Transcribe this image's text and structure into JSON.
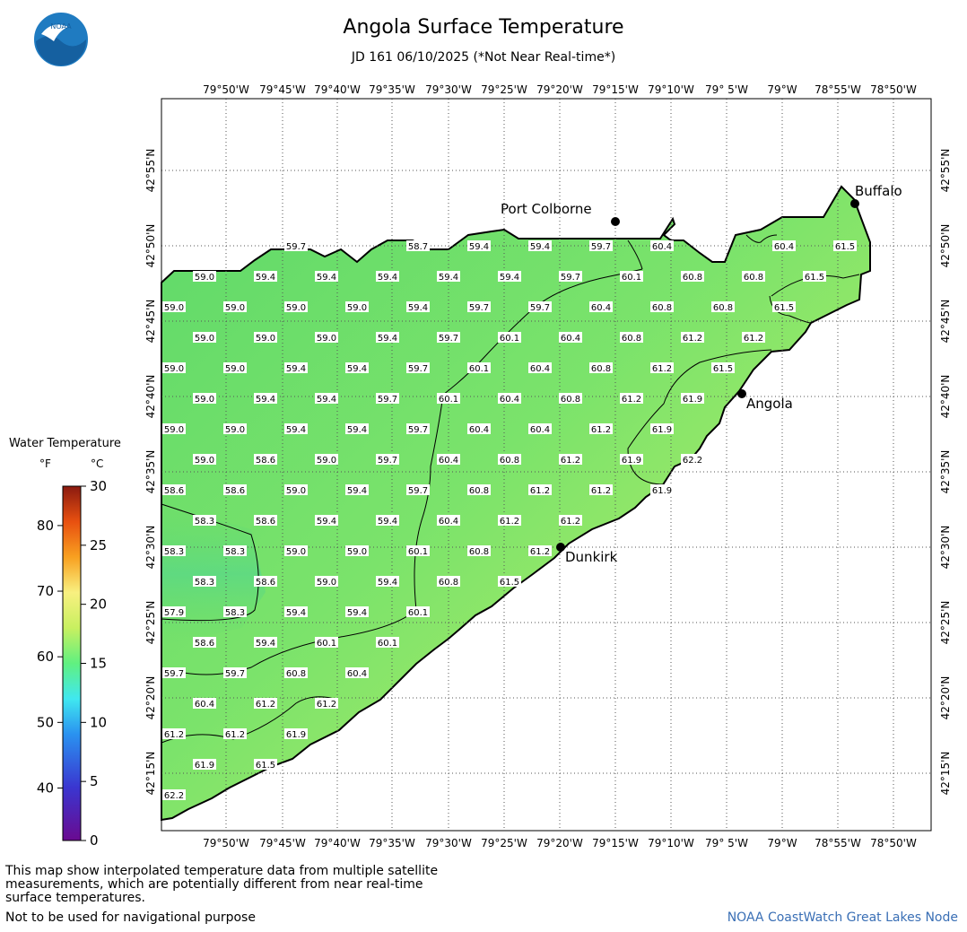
{
  "header": {
    "title": "Angola Surface Temperature",
    "subtitle": "JD 161 06/10/2025 (*Not Near Real-time*)",
    "logo_text": "NOAA"
  },
  "map": {
    "lon_labels": [
      "79°50'W",
      "79°45'W",
      "79°40'W",
      "79°35'W",
      "79°30'W",
      "79°25'W",
      "79°20'W",
      "79°15'W",
      "79°10'W",
      "79° 5'W",
      "79°W",
      "78°55'W",
      "78°50'W"
    ],
    "lat_labels": [
      "42°55'N",
      "42°50'N",
      "42°45'N",
      "42°40'N",
      "42°35'N",
      "42°30'N",
      "42°25'N",
      "42°20'N",
      "42°15'N"
    ],
    "places": [
      {
        "name": "Port Colborne"
      },
      {
        "name": "Buffalo"
      },
      {
        "name": "Angola"
      },
      {
        "name": "Dunkirk"
      }
    ],
    "temperatures": [
      {
        "v": "59.7"
      },
      {
        "v": "58.7"
      },
      {
        "v": "59.4"
      },
      {
        "v": "59.4"
      },
      {
        "v": "59.7"
      },
      {
        "v": "60.4"
      },
      {
        "v": "60.4"
      },
      {
        "v": "61.5"
      },
      {
        "v": "59.0"
      },
      {
        "v": "59.4"
      },
      {
        "v": "59.4"
      },
      {
        "v": "59.4"
      },
      {
        "v": "59.4"
      },
      {
        "v": "59.4"
      },
      {
        "v": "59.7"
      },
      {
        "v": "60.1"
      },
      {
        "v": "60.8"
      },
      {
        "v": "60.8"
      },
      {
        "v": "61.5"
      },
      {
        "v": "59.0"
      },
      {
        "v": "59.0"
      },
      {
        "v": "59.0"
      },
      {
        "v": "59.0"
      },
      {
        "v": "59.4"
      },
      {
        "v": "59.7"
      },
      {
        "v": "59.7"
      },
      {
        "v": "60.4"
      },
      {
        "v": "60.8"
      },
      {
        "v": "60.8"
      },
      {
        "v": "61.5"
      },
      {
        "v": "59.0"
      },
      {
        "v": "59.0"
      },
      {
        "v": "59.0"
      },
      {
        "v": "59.4"
      },
      {
        "v": "59.7"
      },
      {
        "v": "60.1"
      },
      {
        "v": "60.4"
      },
      {
        "v": "60.8"
      },
      {
        "v": "61.2"
      },
      {
        "v": "61.2"
      },
      {
        "v": "59.0"
      },
      {
        "v": "59.0"
      },
      {
        "v": "59.4"
      },
      {
        "v": "59.4"
      },
      {
        "v": "59.7"
      },
      {
        "v": "60.1"
      },
      {
        "v": "60.4"
      },
      {
        "v": "60.8"
      },
      {
        "v": "61.2"
      },
      {
        "v": "61.5"
      },
      {
        "v": "59.0"
      },
      {
        "v": "59.4"
      },
      {
        "v": "59.4"
      },
      {
        "v": "59.7"
      },
      {
        "v": "60.1"
      },
      {
        "v": "60.4"
      },
      {
        "v": "60.8"
      },
      {
        "v": "61.2"
      },
      {
        "v": "61.9"
      },
      {
        "v": "59.0"
      },
      {
        "v": "59.0"
      },
      {
        "v": "59.4"
      },
      {
        "v": "59.4"
      },
      {
        "v": "59.7"
      },
      {
        "v": "60.4"
      },
      {
        "v": "60.4"
      },
      {
        "v": "61.2"
      },
      {
        "v": "61.9"
      },
      {
        "v": "59.0"
      },
      {
        "v": "58.6"
      },
      {
        "v": "59.0"
      },
      {
        "v": "59.7"
      },
      {
        "v": "60.4"
      },
      {
        "v": "60.8"
      },
      {
        "v": "61.2"
      },
      {
        "v": "61.9"
      },
      {
        "v": "62.2"
      },
      {
        "v": "58.6"
      },
      {
        "v": "58.6"
      },
      {
        "v": "59.0"
      },
      {
        "v": "59.4"
      },
      {
        "v": "59.7"
      },
      {
        "v": "60.8"
      },
      {
        "v": "61.2"
      },
      {
        "v": "61.2"
      },
      {
        "v": "61.9"
      },
      {
        "v": "58.3"
      },
      {
        "v": "58.6"
      },
      {
        "v": "59.4"
      },
      {
        "v": "59.4"
      },
      {
        "v": "60.4"
      },
      {
        "v": "61.2"
      },
      {
        "v": "61.2"
      },
      {
        "v": "58.3"
      },
      {
        "v": "58.3"
      },
      {
        "v": "59.0"
      },
      {
        "v": "59.0"
      },
      {
        "v": "60.1"
      },
      {
        "v": "60.8"
      },
      {
        "v": "61.2"
      },
      {
        "v": "58.3"
      },
      {
        "v": "58.6"
      },
      {
        "v": "59.0"
      },
      {
        "v": "59.4"
      },
      {
        "v": "60.8"
      },
      {
        "v": "61.5"
      },
      {
        "v": "57.9"
      },
      {
        "v": "58.3"
      },
      {
        "v": "59.4"
      },
      {
        "v": "59.4"
      },
      {
        "v": "60.1"
      },
      {
        "v": "58.6"
      },
      {
        "v": "59.4"
      },
      {
        "v": "60.1"
      },
      {
        "v": "60.1"
      },
      {
        "v": "59.7"
      },
      {
        "v": "59.7"
      },
      {
        "v": "60.8"
      },
      {
        "v": "60.4"
      },
      {
        "v": "60.4"
      },
      {
        "v": "61.2"
      },
      {
        "v": "61.2"
      },
      {
        "v": "61.2"
      },
      {
        "v": "61.2"
      },
      {
        "v": "61.9"
      },
      {
        "v": "61.9"
      },
      {
        "v": "61.5"
      },
      {
        "v": "62.2"
      }
    ]
  },
  "legend": {
    "title": "Water Temperature",
    "unit_f": "°F",
    "unit_c": "°C",
    "f_ticks": [
      "80",
      "70",
      "60",
      "50",
      "40"
    ],
    "c_ticks": [
      "30",
      "25",
      "20",
      "15",
      "10",
      "5",
      "0"
    ],
    "range_c": [
      0,
      30
    ]
  },
  "footer": {
    "disclaimer": "This map show interpolated temperature data from multiple satellite measurements, which are potentially different from near real-time surface temperatures.",
    "nav_note": "Not to be used for navigational purpose",
    "credit": "NOAA CoastWatch Great Lakes Node"
  },
  "colors": {
    "water_low": "#6fe07a",
    "water_high": "#c8f06a",
    "grid": "#555555",
    "credit": "#3a6fb5"
  }
}
